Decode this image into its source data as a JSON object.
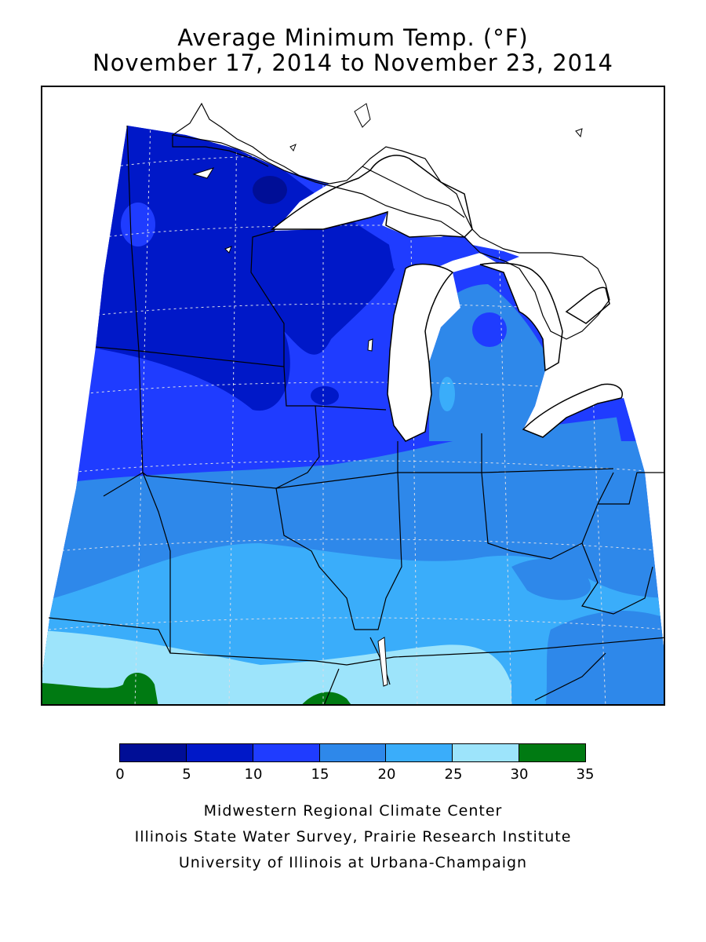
{
  "title": {
    "line1": "Average Minimum Temp. (°F)",
    "line2": "November 17, 2014 to November 23, 2014"
  },
  "legend": {
    "ticks": [
      "0",
      "5",
      "10",
      "15",
      "20",
      "25",
      "30",
      "35"
    ],
    "colors": [
      "#000e96",
      "#0018c8",
      "#1f3cff",
      "#2e88ea",
      "#3aadfa",
      "#9de4fb",
      "#007a12"
    ]
  },
  "map": {
    "region": "Midwest United States",
    "water_color": "#ffffff",
    "border_color": "#000000",
    "grid": true
  },
  "credits": {
    "line1": "Midwestern Regional Climate Center",
    "line2": "Illinois State Water Survey, Prairie Research Institute",
    "line3": "University of Illinois at Urbana-Champaign"
  }
}
